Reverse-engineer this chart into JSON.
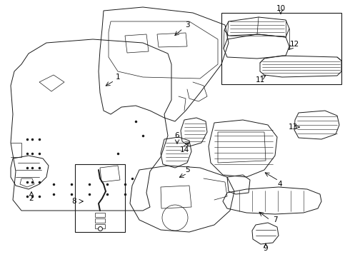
{
  "bg_color": "#ffffff",
  "line_color": "#1a1a1a",
  "lw": 0.7,
  "fig_w": 4.9,
  "fig_h": 3.6,
  "dpi": 100
}
